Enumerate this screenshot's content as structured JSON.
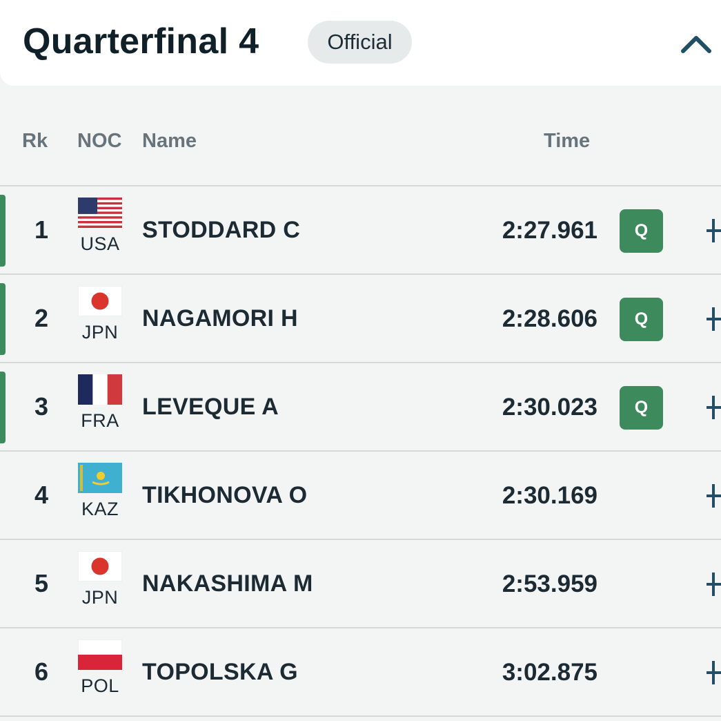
{
  "header": {
    "title": "Quarterfinal 4",
    "status": "Official"
  },
  "columns": {
    "rank": "Rk",
    "noc": "NOC",
    "name": "Name",
    "time": "Time"
  },
  "rows": [
    {
      "rank": "1",
      "noc": "USA",
      "name": "STODDARD C",
      "time": "2:27.961",
      "qualification": "Q"
    },
    {
      "rank": "2",
      "noc": "JPN",
      "name": "NAGAMORI H",
      "time": "2:28.606",
      "qualification": "Q"
    },
    {
      "rank": "3",
      "noc": "FRA",
      "name": "LEVEQUE A",
      "time": "2:30.023",
      "qualification": "Q"
    },
    {
      "rank": "4",
      "noc": "KAZ",
      "name": "TIKHONOVA O",
      "time": "2:30.169",
      "qualification": ""
    },
    {
      "rank": "5",
      "noc": "JPN",
      "name": "NAKASHIMA M",
      "time": "2:53.959",
      "qualification": ""
    },
    {
      "rank": "6",
      "noc": "POL",
      "name": "TOPOLSKA G",
      "time": "3:02.875",
      "qualification": ""
    }
  ],
  "colors": {
    "qualified_accent": "#3d8a5c",
    "header_bg": "#ffffff",
    "table_bg": "#f3f4f4",
    "text": "#1b2a33"
  },
  "icons": {
    "collapse": "chevron-up-icon",
    "expand": "plus-icon"
  }
}
